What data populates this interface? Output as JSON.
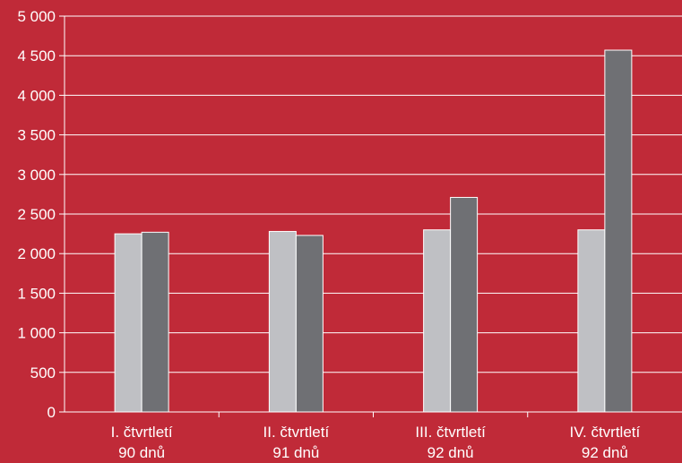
{
  "chart_data": {
    "type": "bar",
    "title": "",
    "xlabel": "",
    "ylabel": "",
    "ylim": [
      0,
      5000
    ],
    "yticks": [
      0,
      500,
      1000,
      1500,
      2000,
      2500,
      3000,
      3500,
      4000,
      4500,
      5000
    ],
    "ytick_labels": [
      "0",
      "500",
      "1 000",
      "1 500",
      "2 000",
      "2 500",
      "3 000",
      "3 500",
      "4 000",
      "4 500",
      "5 000"
    ],
    "grid": true,
    "categories": [
      {
        "line1": "I. čtvrtletí",
        "line2": "90 dnů"
      },
      {
        "line1": "II. čtvrtletí",
        "line2": "91 dnů"
      },
      {
        "line1": "III. čtvrtletí",
        "line2": "92 dnů"
      },
      {
        "line1": "IV. čtvrtletí",
        "line2": "92 dnů"
      }
    ],
    "series": [
      {
        "color": "#bfc0c4",
        "values": [
          2250,
          2280,
          2300,
          2300
        ]
      },
      {
        "color": "#6f7074",
        "values": [
          2270,
          2230,
          2710,
          4570
        ]
      }
    ],
    "background": "#c02a38"
  }
}
